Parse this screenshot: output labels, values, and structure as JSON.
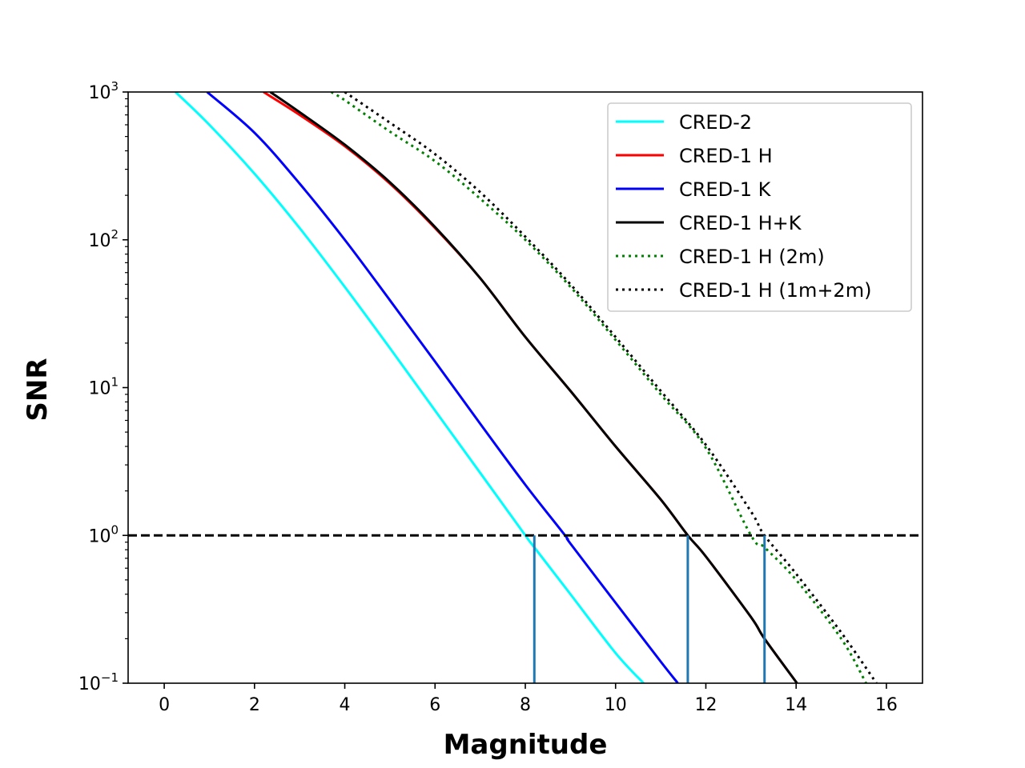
{
  "chart_data": {
    "type": "line",
    "title": "",
    "xlabel": "Magnitude",
    "ylabel": "SNR",
    "xscale": "linear",
    "yscale": "log",
    "xlim": [
      -0.8,
      16.8
    ],
    "ylim": [
      0.1,
      1000
    ],
    "x_ticks": [
      0,
      2,
      4,
      6,
      8,
      10,
      12,
      14,
      16
    ],
    "x_tick_labels": [
      "0",
      "2",
      "4",
      "6",
      "8",
      "10",
      "12",
      "14",
      "16"
    ],
    "y_ticks": [
      0.1,
      1,
      10,
      100,
      1000
    ],
    "y_tick_labels": [
      {
        "base": "10",
        "exp": "−1"
      },
      {
        "base": "10",
        "exp": "0"
      },
      {
        "base": "10",
        "exp": "1"
      },
      {
        "base": "10",
        "exp": "2"
      },
      {
        "base": "10",
        "exp": "3"
      }
    ],
    "grid": false,
    "legend_position": "top-right",
    "series": [
      {
        "name": "CRED-2",
        "color": "#00ffff",
        "style": "solid",
        "x": [
          0.25,
          1,
          2,
          3,
          4,
          5,
          6,
          7,
          8,
          8.2,
          9,
          10,
          10.62
        ],
        "y": [
          1000,
          600,
          280,
          120,
          48,
          18.5,
          7,
          2.65,
          1.0,
          0.83,
          0.4,
          0.16,
          0.1
        ]
      },
      {
        "name": "CRED-1 H",
        "color": "#ff0000",
        "style": "solid",
        "x": [
          2.2,
          3,
          4,
          5,
          6,
          7,
          8,
          9,
          10,
          11,
          11.6,
          12,
          13,
          13.3,
          14.02
        ],
        "y": [
          1000,
          700,
          430,
          240,
          120,
          55,
          22,
          9.5,
          4.0,
          1.75,
          1.0,
          0.72,
          0.28,
          0.2,
          0.1
        ]
      },
      {
        "name": "CRED-1 K",
        "color": "#0000ff",
        "style": "solid",
        "x": [
          0.95,
          2,
          3,
          4,
          5,
          6,
          7,
          8,
          8.88,
          9,
          10,
          11,
          11.38
        ],
        "y": [
          1000,
          530,
          240,
          100,
          39,
          15,
          5.7,
          2.2,
          1.0,
          0.88,
          0.35,
          0.14,
          0.1
        ]
      },
      {
        "name": "CRED-1 H+K",
        "color": "#000000",
        "style": "solid",
        "x": [
          2.35,
          3,
          4,
          5,
          6,
          7,
          8,
          9,
          10,
          11,
          11.6,
          12,
          13,
          13.3,
          14.02
        ],
        "y": [
          1000,
          730,
          440,
          245,
          122,
          55,
          22,
          9.5,
          4.0,
          1.75,
          1.0,
          0.72,
          0.28,
          0.2,
          0.1
        ]
      },
      {
        "name": "CRED-1 H (2m)",
        "color": "#008000",
        "style": "dotted",
        "x": [
          3.7,
          4,
          5,
          6,
          7,
          8,
          9,
          10,
          11,
          12,
          13,
          13.3,
          14,
          15,
          15.55
        ],
        "y": [
          1000,
          880,
          540,
          340,
          190,
          100,
          48,
          21,
          9.0,
          3.9,
          1.0,
          0.83,
          0.5,
          0.2,
          0.1
        ]
      },
      {
        "name": "CRED-1 H (1m+2m)",
        "color": "#000000",
        "style": "dotted",
        "x": [
          4.0,
          5,
          6,
          7,
          8,
          9,
          10,
          11,
          12,
          13,
          13.3,
          14,
          15,
          15.78
        ],
        "y": [
          1000,
          620,
          380,
          210,
          105,
          50,
          22,
          9.5,
          4.1,
          1.45,
          1.0,
          0.55,
          0.22,
          0.1
        ]
      }
    ],
    "reference_line": {
      "y": 1,
      "color": "#000000",
      "style": "dashed"
    },
    "vertical_markers": {
      "x": [
        8.2,
        11.6,
        13.3
      ],
      "y_from": 0.1,
      "y_to": 1,
      "color": "#1f77b4"
    }
  }
}
